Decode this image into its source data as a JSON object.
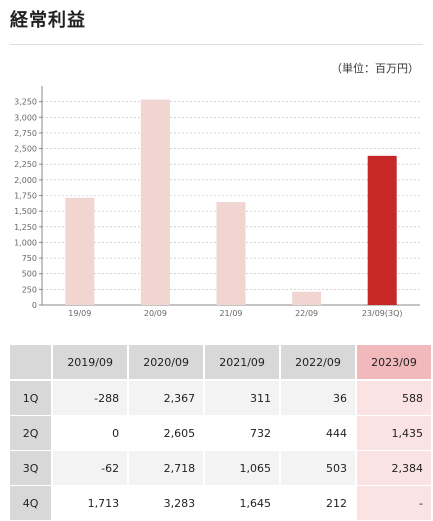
{
  "page": {
    "title": "経常利益",
    "unit": "（単位：百万円）"
  },
  "chart_data": {
    "type": "bar",
    "categories": [
      "19/09",
      "20/09",
      "21/09",
      "22/09",
      "23/09(3Q)"
    ],
    "values": [
      1713,
      3283,
      1645,
      212,
      2384
    ],
    "colors": [
      "#f0d5d1",
      "#f0d5d1",
      "#f0d5d1",
      "#f0d5d1",
      "#c62828"
    ],
    "ylim": [
      0,
      3500
    ],
    "yticks": [
      "0",
      "250",
      "500",
      "750",
      "1,000",
      "1,250",
      "1,500",
      "1,750",
      "2,000",
      "2,250",
      "2,500",
      "2,750",
      "3,000",
      "3,250"
    ],
    "grid": true
  },
  "table": {
    "headers": [
      "",
      "2019/09",
      "2020/09",
      "2021/09",
      "2022/09",
      "2023/09"
    ],
    "rows": [
      {
        "q": "1Q",
        "cells": [
          "-288",
          "2,367",
          "311",
          "36",
          "588"
        ]
      },
      {
        "q": "2Q",
        "cells": [
          "0",
          "2,605",
          "732",
          "444",
          "1,435"
        ]
      },
      {
        "q": "3Q",
        "cells": [
          "-62",
          "2,718",
          "1,065",
          "503",
          "2,384"
        ]
      },
      {
        "q": "4Q",
        "cells": [
          "1,713",
          "3,283",
          "1,645",
          "212",
          "-"
        ]
      }
    ]
  }
}
